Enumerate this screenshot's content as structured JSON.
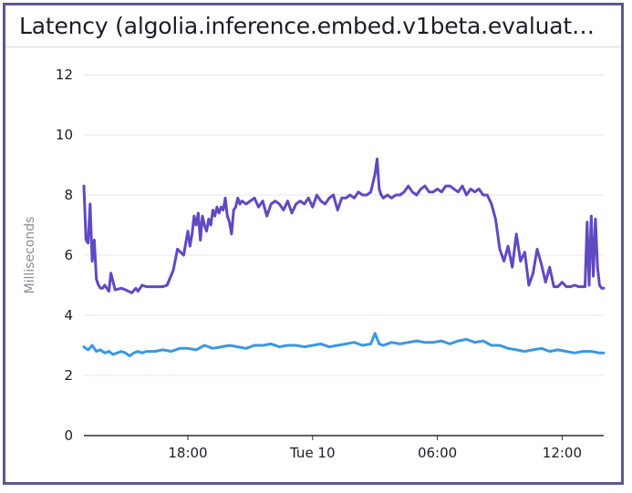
{
  "title": "Latency (algolia.inference.embed.v1beta.evaluate...",
  "chart_data": {
    "type": "line",
    "title": "Latency (algolia.inference.embed.v1beta.evaluate...",
    "ylabel": "Milliseconds",
    "xlabel": "",
    "ylim": [
      0,
      12
    ],
    "y_ticks": [
      "0",
      "2",
      "4",
      "6",
      "8",
      "10",
      "12"
    ],
    "x_ticks": [
      "18:00",
      "Tue 10",
      "06:00",
      "12:00"
    ],
    "x_tick_hours": [
      18,
      24,
      30,
      36
    ],
    "xlim_hours": [
      13.0,
      38.0
    ],
    "grid": true,
    "legend": "none",
    "series": [
      {
        "color": "#6148c4",
        "x": [
          13.0,
          13.1,
          13.2,
          13.3,
          13.4,
          13.5,
          13.6,
          13.7,
          13.8,
          13.9,
          14.0,
          14.1,
          14.2,
          14.3,
          14.5,
          14.8,
          15.0,
          15.3,
          15.5,
          15.6,
          15.7,
          15.8,
          16.0,
          16.3,
          16.5,
          16.8,
          17.0,
          17.3,
          17.5,
          17.8,
          18.0,
          18.1,
          18.2,
          18.3,
          18.4,
          18.5,
          18.6,
          18.7,
          18.8,
          18.9,
          19.0,
          19.1,
          19.2,
          19.3,
          19.4,
          19.5,
          19.6,
          19.7,
          19.8,
          19.9,
          20.0,
          20.1,
          20.2,
          20.3,
          20.4,
          20.5,
          20.6,
          20.8,
          21.0,
          21.2,
          21.4,
          21.6,
          21.8,
          22.0,
          22.2,
          22.4,
          22.6,
          22.8,
          23.0,
          23.2,
          23.4,
          23.6,
          23.8,
          24.0,
          24.2,
          24.4,
          24.6,
          24.8,
          25.0,
          25.2,
          25.4,
          25.6,
          25.8,
          26.0,
          26.2,
          26.4,
          26.6,
          26.8,
          27.0,
          27.1,
          27.2,
          27.3,
          27.4,
          27.6,
          27.8,
          28.0,
          28.2,
          28.4,
          28.6,
          28.8,
          29.0,
          29.2,
          29.4,
          29.6,
          29.8,
          30.0,
          30.2,
          30.4,
          30.6,
          30.8,
          31.0,
          31.2,
          31.4,
          31.6,
          31.8,
          32.0,
          32.2,
          32.4,
          32.6,
          32.8,
          33.0,
          33.2,
          33.4,
          33.6,
          33.8,
          34.0,
          34.2,
          34.4,
          34.6,
          34.8,
          35.0,
          35.2,
          35.4,
          35.6,
          35.8,
          36.0,
          36.2,
          36.4,
          36.6,
          36.8,
          37.0,
          37.1,
          37.2,
          37.3,
          37.4,
          37.5,
          37.6,
          37.7,
          37.8,
          37.9,
          38.0
        ],
        "y": [
          8.3,
          6.5,
          6.4,
          7.7,
          5.8,
          6.5,
          5.2,
          5.0,
          4.9,
          4.9,
          5.0,
          4.9,
          4.8,
          5.4,
          4.85,
          4.9,
          4.85,
          4.75,
          4.9,
          4.8,
          4.9,
          5.0,
          4.95,
          4.95,
          4.95,
          4.95,
          5.0,
          5.5,
          6.2,
          6.0,
          6.8,
          6.3,
          6.7,
          7.3,
          7.0,
          7.4,
          6.5,
          7.3,
          7.0,
          6.8,
          7.2,
          7.0,
          7.5,
          7.3,
          7.6,
          7.4,
          7.6,
          7.5,
          7.9,
          7.3,
          7.1,
          6.7,
          7.5,
          7.6,
          7.9,
          7.7,
          7.8,
          7.7,
          7.8,
          7.9,
          7.6,
          7.8,
          7.3,
          7.7,
          7.8,
          7.7,
          7.5,
          7.8,
          7.4,
          7.7,
          7.8,
          7.7,
          7.9,
          7.6,
          8.0,
          7.8,
          7.7,
          7.9,
          8.0,
          7.5,
          7.9,
          7.9,
          8.0,
          7.9,
          8.1,
          8.0,
          8.0,
          8.1,
          8.7,
          9.2,
          8.2,
          8.0,
          7.9,
          8.0,
          7.9,
          8.0,
          8.0,
          8.1,
          8.3,
          8.1,
          8.0,
          8.2,
          8.3,
          8.1,
          8.1,
          8.2,
          8.1,
          8.3,
          8.3,
          8.2,
          8.1,
          8.3,
          8.0,
          8.2,
          8.1,
          8.2,
          8.0,
          8.0,
          7.7,
          7.2,
          6.2,
          5.8,
          6.3,
          5.6,
          6.7,
          5.8,
          6.1,
          5.0,
          5.4,
          6.2,
          5.7,
          5.1,
          5.6,
          4.95,
          4.95,
          5.1,
          4.95,
          4.95,
          5.0,
          4.95,
          4.95,
          4.95,
          7.1,
          5.0,
          7.3,
          5.3,
          7.2,
          5.6,
          5.0,
          4.9,
          4.9
        ]
      },
      {
        "color": "#3b97e3",
        "x": [
          13.0,
          13.2,
          13.4,
          13.6,
          13.8,
          14.0,
          14.2,
          14.4,
          14.6,
          14.8,
          15.0,
          15.2,
          15.4,
          15.6,
          15.8,
          16.0,
          16.4,
          16.8,
          17.2,
          17.6,
          18.0,
          18.4,
          18.8,
          19.2,
          19.6,
          20.0,
          20.4,
          20.8,
          21.2,
          21.6,
          22.0,
          22.4,
          22.8,
          23.2,
          23.6,
          24.0,
          24.4,
          24.8,
          25.2,
          25.6,
          26.0,
          26.4,
          26.8,
          27.0,
          27.2,
          27.4,
          27.8,
          28.2,
          28.6,
          29.0,
          29.4,
          29.8,
          30.2,
          30.6,
          31.0,
          31.4,
          31.8,
          32.2,
          32.6,
          33.0,
          33.4,
          33.8,
          34.2,
          34.6,
          35.0,
          35.4,
          35.8,
          36.2,
          36.6,
          37.0,
          37.4,
          37.8,
          38.0
        ],
        "y": [
          2.95,
          2.85,
          3.0,
          2.8,
          2.85,
          2.75,
          2.8,
          2.7,
          2.75,
          2.8,
          2.75,
          2.65,
          2.75,
          2.8,
          2.75,
          2.8,
          2.8,
          2.85,
          2.8,
          2.9,
          2.9,
          2.85,
          3.0,
          2.9,
          2.95,
          3.0,
          2.95,
          2.9,
          3.0,
          3.0,
          3.05,
          2.95,
          3.0,
          3.0,
          2.95,
          3.0,
          3.05,
          2.95,
          3.0,
          3.05,
          3.1,
          3.0,
          3.05,
          3.4,
          3.05,
          3.0,
          3.1,
          3.05,
          3.1,
          3.15,
          3.1,
          3.1,
          3.15,
          3.05,
          3.15,
          3.2,
          3.1,
          3.15,
          3.0,
          3.0,
          2.9,
          2.85,
          2.8,
          2.85,
          2.9,
          2.8,
          2.85,
          2.8,
          2.75,
          2.8,
          2.8,
          2.75,
          2.75
        ]
      }
    ]
  }
}
